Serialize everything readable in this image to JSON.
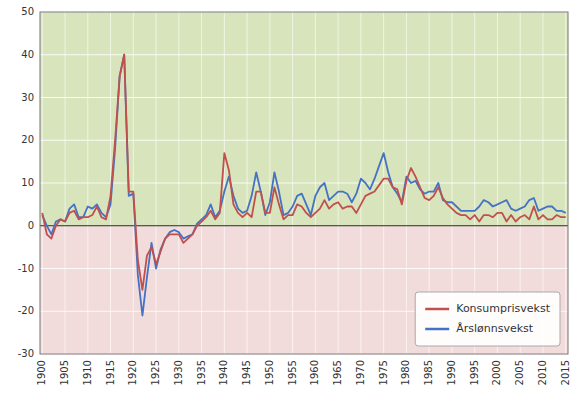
{
  "chart_data": {
    "type": "line",
    "x": [
      1900,
      1901,
      1902,
      1903,
      1904,
      1905,
      1906,
      1907,
      1908,
      1909,
      1910,
      1911,
      1912,
      1913,
      1914,
      1915,
      1916,
      1917,
      1918,
      1919,
      1920,
      1921,
      1922,
      1923,
      1924,
      1925,
      1926,
      1927,
      1928,
      1929,
      1930,
      1931,
      1932,
      1933,
      1934,
      1935,
      1936,
      1937,
      1938,
      1939,
      1940,
      1941,
      1942,
      1943,
      1944,
      1945,
      1946,
      1947,
      1948,
      1949,
      1950,
      1951,
      1952,
      1953,
      1954,
      1955,
      1956,
      1957,
      1958,
      1959,
      1960,
      1961,
      1962,
      1963,
      1964,
      1965,
      1966,
      1967,
      1968,
      1969,
      1970,
      1971,
      1972,
      1973,
      1974,
      1975,
      1976,
      1977,
      1978,
      1979,
      1980,
      1981,
      1982,
      1983,
      1984,
      1985,
      1986,
      1987,
      1988,
      1989,
      1990,
      1991,
      1992,
      1993,
      1994,
      1995,
      1996,
      1997,
      1998,
      1999,
      2000,
      2001,
      2002,
      2003,
      2004,
      2005,
      2006,
      2007,
      2008,
      2009,
      2010,
      2011,
      2012,
      2013,
      2014,
      2015
    ],
    "series": [
      {
        "name": "Konsumprisvekst",
        "color": "#C0504D",
        "values": [
          3.0,
          -2.0,
          -3.0,
          0.0,
          1.5,
          1.0,
          3.0,
          3.5,
          1.5,
          2.0,
          2.0,
          2.5,
          4.5,
          2.0,
          1.5,
          7.0,
          20.0,
          35.0,
          40.0,
          8.0,
          8.0,
          -8.0,
          -15.0,
          -7.0,
          -5.0,
          -9.0,
          -6.0,
          -3.0,
          -2.0,
          -2.0,
          -2.0,
          -4.0,
          -3.0,
          -2.0,
          0.0,
          1.0,
          2.0,
          3.5,
          1.5,
          3.0,
          17.0,
          13.0,
          5.0,
          3.0,
          2.0,
          3.0,
          2.0,
          8.0,
          8.0,
          3.0,
          3.0,
          9.0,
          5.0,
          1.5,
          2.5,
          2.5,
          5.0,
          4.5,
          3.0,
          2.0,
          3.0,
          4.0,
          6.0,
          4.0,
          5.0,
          5.5,
          4.0,
          4.5,
          4.5,
          3.0,
          5.0,
          7.0,
          7.5,
          8.0,
          9.5,
          11.0,
          11.0,
          9.0,
          8.5,
          5.0,
          10.5,
          13.5,
          11.5,
          9.0,
          6.5,
          6.0,
          7.0,
          9.0,
          6.5,
          5.0,
          4.0,
          3.0,
          2.5,
          2.5,
          1.5,
          2.5,
          1.0,
          2.5,
          2.5,
          2.0,
          3.0,
          3.0,
          1.0,
          2.5,
          1.0,
          2.0,
          2.5,
          1.5,
          4.5,
          1.5,
          2.5,
          1.5,
          1.5,
          2.5,
          2.0,
          2.0
        ]
      },
      {
        "name": "Årslønnsvekst",
        "color": "#4472C4",
        "values": [
          2.5,
          0.0,
          -2.0,
          1.0,
          1.5,
          1.0,
          4.0,
          5.0,
          2.0,
          2.0,
          4.5,
          4.0,
          5.0,
          3.0,
          2.0,
          5.0,
          18.0,
          35.0,
          40.0,
          7.0,
          7.5,
          -11.5,
          -21.0,
          -12.0,
          -4.0,
          -10.0,
          -5.5,
          -3.0,
          -1.5,
          -1.0,
          -1.5,
          -3.0,
          -2.5,
          -2.0,
          0.5,
          1.5,
          2.5,
          5.0,
          2.0,
          3.5,
          8.0,
          11.5,
          7.0,
          4.0,
          3.0,
          3.5,
          7.0,
          12.5,
          8.0,
          2.5,
          5.5,
          12.5,
          8.0,
          2.5,
          3.0,
          4.5,
          7.0,
          7.5,
          5.0,
          2.5,
          7.0,
          9.0,
          10.0,
          6.0,
          7.0,
          8.0,
          8.0,
          7.5,
          5.5,
          7.5,
          11.0,
          10.0,
          8.5,
          11.0,
          14.0,
          17.0,
          12.5,
          9.0,
          7.5,
          5.5,
          11.5,
          10.0,
          10.5,
          8.5,
          7.5,
          8.0,
          8.0,
          10.0,
          6.0,
          5.5,
          5.5,
          4.5,
          3.5,
          3.5,
          3.5,
          3.5,
          4.5,
          6.0,
          5.5,
          4.5,
          5.0,
          5.5,
          6.0,
          4.0,
          3.5,
          4.0,
          4.5,
          6.0,
          6.5,
          3.5,
          4.0,
          4.5,
          4.5,
          3.5,
          3.5,
          3.0
        ]
      }
    ],
    "xlim": [
      1899.5,
      2015.5
    ],
    "ylim": [
      -30,
      50
    ],
    "xticks": [
      1900,
      1905,
      1910,
      1915,
      1920,
      1925,
      1930,
      1935,
      1940,
      1945,
      1950,
      1955,
      1960,
      1965,
      1970,
      1975,
      1980,
      1985,
      1990,
      1995,
      2000,
      2005,
      2010,
      2015
    ],
    "yticks": [
      -30,
      -20,
      -10,
      0,
      10,
      20,
      30,
      40,
      50
    ],
    "grid": true,
    "legend": "lower right"
  }
}
